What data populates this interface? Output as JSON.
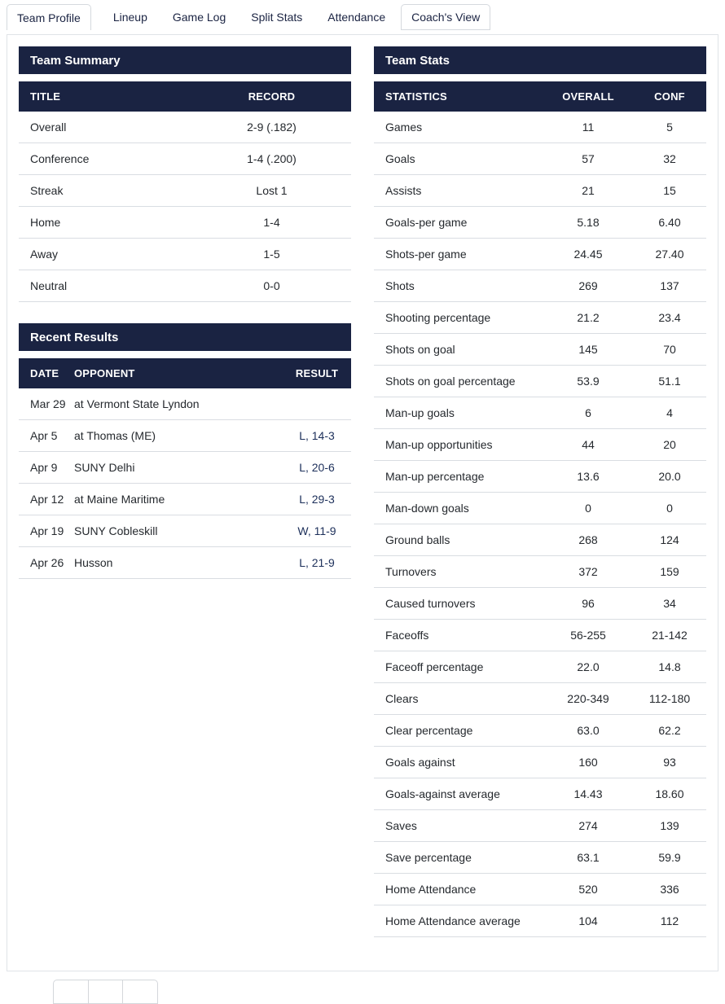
{
  "tabs": [
    {
      "label": "Team Profile",
      "state": "active"
    },
    {
      "label": "Lineup",
      "state": "plain"
    },
    {
      "label": "Game Log",
      "state": "plain"
    },
    {
      "label": "Split Stats",
      "state": "plain"
    },
    {
      "label": "Attendance",
      "state": "plain"
    },
    {
      "label": "Coach's View",
      "state": "boxed"
    }
  ],
  "team_summary": {
    "title": "Team Summary",
    "columns": [
      "TITLE",
      "RECORD"
    ],
    "rows": [
      {
        "title": "Overall",
        "record": "2-9 (.182)"
      },
      {
        "title": "Conference",
        "record": "1-4 (.200)"
      },
      {
        "title": "Streak",
        "record": "Lost 1"
      },
      {
        "title": "Home",
        "record": "1-4"
      },
      {
        "title": "Away",
        "record": "1-5"
      },
      {
        "title": "Neutral",
        "record": "0-0"
      }
    ]
  },
  "recent_results": {
    "title": "Recent Results",
    "columns": [
      "DATE",
      "OPPONENT",
      "RESULT"
    ],
    "rows": [
      {
        "date": "Mar 29",
        "opponent": "at Vermont State Lyndon",
        "result": ""
      },
      {
        "date": "Apr 5",
        "opponent": "at Thomas (ME)",
        "result": "L, 14-3"
      },
      {
        "date": "Apr 9",
        "opponent": "SUNY Delhi",
        "result": "L, 20-6"
      },
      {
        "date": "Apr 12",
        "opponent": "at Maine Maritime",
        "result": "L, 29-3"
      },
      {
        "date": "Apr 19",
        "opponent": "SUNY Cobleskill",
        "result": "W, 11-9"
      },
      {
        "date": "Apr 26",
        "opponent": "Husson",
        "result": "L, 21-9"
      }
    ]
  },
  "team_stats": {
    "title": "Team Stats",
    "columns": [
      "STATISTICS",
      "OVERALL",
      "CONF"
    ],
    "rows": [
      {
        "label": "Games",
        "overall": "11",
        "conf": "5"
      },
      {
        "label": "Goals",
        "overall": "57",
        "conf": "32"
      },
      {
        "label": "Assists",
        "overall": "21",
        "conf": "15"
      },
      {
        "label": "Goals-per game",
        "overall": "5.18",
        "conf": "6.40"
      },
      {
        "label": "Shots-per game",
        "overall": "24.45",
        "conf": "27.40"
      },
      {
        "label": "Shots",
        "overall": "269",
        "conf": "137"
      },
      {
        "label": "Shooting percentage",
        "overall": "21.2",
        "conf": "23.4"
      },
      {
        "label": "Shots on goal",
        "overall": "145",
        "conf": "70"
      },
      {
        "label": "Shots on goal percentage",
        "overall": "53.9",
        "conf": "51.1"
      },
      {
        "label": "Man-up goals",
        "overall": "6",
        "conf": "4"
      },
      {
        "label": "Man-up opportunities",
        "overall": "44",
        "conf": "20"
      },
      {
        "label": "Man-up percentage",
        "overall": "13.6",
        "conf": "20.0"
      },
      {
        "label": "Man-down goals",
        "overall": "0",
        "conf": "0"
      },
      {
        "label": "Ground balls",
        "overall": "268",
        "conf": "124"
      },
      {
        "label": "Turnovers",
        "overall": "372",
        "conf": "159"
      },
      {
        "label": "Caused turnovers",
        "overall": "96",
        "conf": "34"
      },
      {
        "label": "Faceoffs",
        "overall": "56-255",
        "conf": "21-142"
      },
      {
        "label": "Faceoff percentage",
        "overall": "22.0",
        "conf": "14.8"
      },
      {
        "label": "Clears",
        "overall": "220-349",
        "conf": "112-180"
      },
      {
        "label": "Clear percentage",
        "overall": "63.0",
        "conf": "62.2"
      },
      {
        "label": "Goals against",
        "overall": "160",
        "conf": "93"
      },
      {
        "label": "Goals-against average",
        "overall": "14.43",
        "conf": "18.60"
      },
      {
        "label": "Saves",
        "overall": "274",
        "conf": "139"
      },
      {
        "label": "Save percentage",
        "overall": "63.1",
        "conf": "59.9"
      },
      {
        "label": "Home Attendance",
        "overall": "520",
        "conf": "336"
      },
      {
        "label": "Home Attendance average",
        "overall": "104",
        "conf": "112"
      }
    ]
  },
  "colors": {
    "header_navy": "#1a2342",
    "result_link": "#1c2f5a",
    "row_border": "#d9dde2",
    "card_border": "#e0e3e7",
    "tab_border": "#d5d9de"
  }
}
